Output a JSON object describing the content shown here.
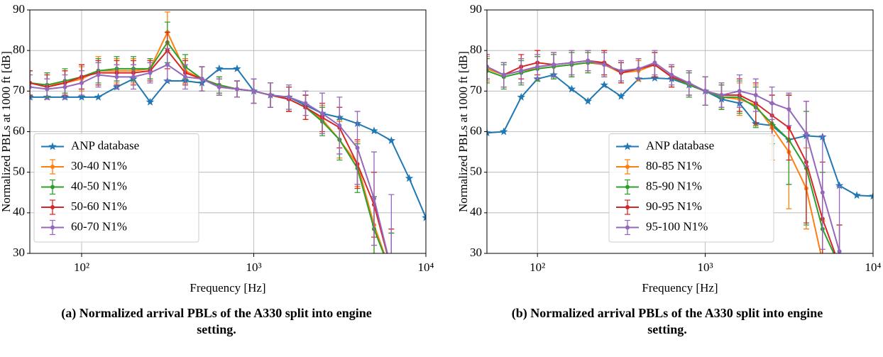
{
  "chart_data": [
    {
      "type": "line",
      "xlabel": "Frequency [Hz]",
      "ylabel": "Normalized PBLs at 1000 ft [dB]",
      "caption": "(a) Normalized arrival PBLs of the A330 split into engine setting.",
      "xscale": "log",
      "xlim": [
        50,
        10000
      ],
      "xticks": [
        {
          "value": 100,
          "label": "10²"
        },
        {
          "value": 1000,
          "label": "10³"
        },
        {
          "value": 10000,
          "label": "10⁴"
        }
      ],
      "ylim": [
        30,
        90
      ],
      "yticks": [
        30,
        40,
        50,
        60,
        70,
        80,
        90
      ],
      "grid": true,
      "legend": "lower left",
      "x": [
        50,
        63,
        80,
        100,
        125,
        160,
        200,
        250,
        315,
        400,
        500,
        630,
        800,
        1000,
        1250,
        1600,
        2000,
        2500,
        3150,
        4000,
        5000,
        6300,
        8000,
        10000
      ],
      "series": [
        {
          "name": "ANP database",
          "color": "#1f77b4",
          "marker": "star",
          "values": [
            68.5,
            68.5,
            68.5,
            68.5,
            68.5,
            71,
            73,
            67.3,
            72.5,
            72.5,
            72,
            75.5,
            75.5,
            70,
            69,
            68.5,
            66.5,
            64.5,
            63.5,
            62,
            60.2,
            57.8,
            48.5,
            38.8
          ]
        },
        {
          "name": "30-40 N1%",
          "color": "#ff7f0e",
          "marker": "circle",
          "values": [
            72,
            71.5,
            72,
            73,
            75,
            75,
            75,
            75.5,
            84.5,
            75,
            73,
            71.5,
            70.5,
            70,
            69,
            68,
            66,
            63,
            58,
            52,
            37,
            25,
            null,
            null
          ],
          "errors": [
            3,
            3,
            3,
            3,
            3.5,
            3,
            3,
            2.5,
            5,
            3,
            3,
            2,
            2,
            3,
            3,
            3,
            3,
            3.5,
            4.5,
            5.5,
            7,
            10,
            null,
            null
          ]
        },
        {
          "name": "40-50 N1%",
          "color": "#2ca02c",
          "marker": "circle",
          "values": [
            72,
            71.5,
            72.5,
            73.5,
            75,
            75.5,
            75.5,
            75.5,
            82,
            76,
            73,
            71.5,
            70.5,
            70,
            69,
            68,
            66,
            62.5,
            58,
            51,
            36,
            25,
            null,
            null
          ],
          "errors": [
            3,
            3,
            3,
            3,
            3,
            3,
            3,
            2.5,
            5,
            3,
            3,
            2,
            2,
            3,
            3,
            3,
            3,
            3.5,
            5,
            6,
            8,
            10,
            null,
            null
          ]
        },
        {
          "name": "50-60 N1%",
          "color": "#d62728",
          "marker": "circle",
          "values": [
            72,
            71,
            72,
            73.5,
            74.5,
            74.5,
            74.5,
            75,
            80,
            74.5,
            73,
            71,
            70.5,
            70,
            69,
            68,
            66,
            63.5,
            61,
            52,
            42,
            26,
            null,
            null
          ],
          "errors": [
            3,
            3,
            3,
            3,
            3,
            3,
            3,
            2.5,
            4.5,
            3,
            3,
            2,
            2,
            3,
            3,
            3,
            3,
            3.5,
            5,
            6,
            8,
            10,
            null,
            null
          ]
        },
        {
          "name": "60-70 N1%",
          "color": "#9467bd",
          "marker": "circle",
          "values": [
            71,
            70.5,
            71,
            72,
            74,
            73.5,
            73.5,
            74.5,
            76.5,
            73.5,
            73,
            71,
            70.5,
            70,
            69,
            68.5,
            67,
            64.5,
            61.5,
            56,
            43.5,
            26,
            null,
            null
          ],
          "errors": [
            3,
            2.5,
            3,
            3,
            3,
            3,
            3,
            2.5,
            4,
            3,
            3,
            2,
            2,
            3,
            3,
            3,
            3,
            5,
            7,
            9,
            11.5,
            18.5,
            null,
            null
          ]
        }
      ]
    },
    {
      "type": "line",
      "xlabel": "Frequency [Hz]",
      "ylabel": "Normalized PBLs at 1000 ft [dB]",
      "caption": "(b) Normalized arrival PBLs of the A330 split into engine setting.",
      "xscale": "log",
      "xlim": [
        50,
        10000
      ],
      "xticks": [
        {
          "value": 100,
          "label": "10²"
        },
        {
          "value": 1000,
          "label": "10³"
        },
        {
          "value": 10000,
          "label": "10⁴"
        }
      ],
      "ylim": [
        30,
        90
      ],
      "yticks": [
        30,
        40,
        50,
        60,
        70,
        80,
        90
      ],
      "grid": true,
      "legend": "lower center",
      "x": [
        50,
        63,
        80,
        100,
        125,
        160,
        200,
        250,
        315,
        400,
        500,
        630,
        800,
        1000,
        1250,
        1600,
        2000,
        2500,
        3150,
        4000,
        5000,
        6300,
        8000,
        10000
      ],
      "series": [
        {
          "name": "ANP database",
          "color": "#1f77b4",
          "marker": "star",
          "values": [
            59.7,
            60,
            68.5,
            73,
            74,
            70.5,
            67.5,
            71.5,
            68.7,
            73,
            73.2,
            73,
            71.5,
            70,
            68,
            67,
            62,
            61.5,
            58,
            59,
            58.7,
            46.7,
            44.3,
            44.1
          ]
        },
        {
          "name": "80-85 N1%",
          "color": "#ff7f0e",
          "marker": "circle",
          "values": [
            75.5,
            74,
            75,
            75.5,
            76,
            76.5,
            77,
            76.5,
            74.5,
            75,
            76.5,
            73.5,
            71.5,
            70,
            68.5,
            68,
            66.5,
            61,
            55,
            46,
            28,
            null,
            null,
            null
          ],
          "errors": [
            3,
            3,
            3,
            3,
            3,
            3,
            2.5,
            3,
            2.5,
            2.5,
            3,
            2.5,
            3,
            3.5,
            3,
            4,
            5,
            8,
            14,
            10,
            10,
            null,
            null,
            null
          ]
        },
        {
          "name": "85-90 N1%",
          "color": "#2ca02c",
          "marker": "circle",
          "values": [
            75,
            73.5,
            74.5,
            75.5,
            76,
            76.5,
            77,
            77,
            74.5,
            75.5,
            76.5,
            73.5,
            71.5,
            70,
            68.5,
            68.5,
            66,
            62,
            58,
            51,
            36,
            27,
            null,
            null
          ],
          "errors": [
            3,
            3,
            3,
            3,
            3,
            3,
            2.5,
            3,
            2.5,
            2.5,
            3,
            2.5,
            3,
            3.5,
            3,
            4,
            5,
            5,
            11,
            14,
            14,
            10,
            null,
            null
          ]
        },
        {
          "name": "90-95 N1%",
          "color": "#d62728",
          "marker": "circle",
          "values": [
            76,
            74,
            76,
            77,
            76.5,
            77,
            77.5,
            77,
            74.5,
            75.5,
            76.5,
            73.5,
            72,
            70,
            69,
            69,
            67,
            64,
            61,
            52.5,
            38.5,
            27,
            null,
            null
          ],
          "errors": [
            3,
            3,
            3,
            3,
            3,
            3,
            2.5,
            3,
            2.5,
            2.5,
            3,
            2.5,
            3,
            3.5,
            3,
            4,
            5,
            5,
            8,
            15,
            14,
            10,
            null,
            null
          ]
        },
        {
          "name": "95-100 N1%",
          "color": "#9467bd",
          "marker": "circle",
          "values": [
            76,
            74,
            75,
            76,
            76.5,
            77,
            77.5,
            76.5,
            75,
            75.5,
            77,
            74,
            72,
            70,
            69,
            70,
            69,
            67,
            65.5,
            59.5,
            45,
            30.5,
            null,
            null
          ],
          "errors": [
            3,
            3,
            3,
            3,
            3,
            3,
            2.5,
            3,
            2.5,
            2.5,
            3,
            2.5,
            3,
            3.5,
            3,
            4,
            4,
            4,
            4,
            8,
            14,
            16,
            null,
            null
          ]
        }
      ]
    }
  ]
}
